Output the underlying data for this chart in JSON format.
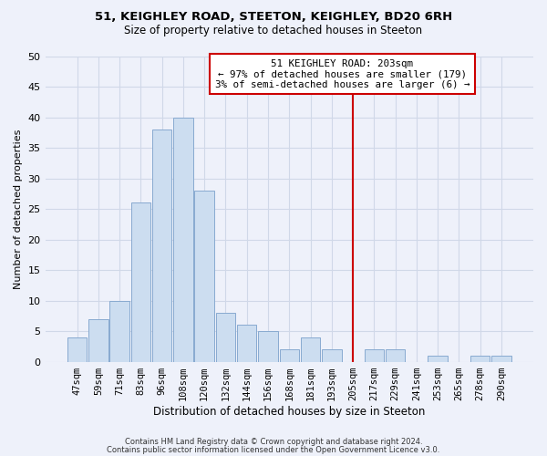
{
  "title": "51, KEIGHLEY ROAD, STEETON, KEIGHLEY, BD20 6RH",
  "subtitle": "Size of property relative to detached houses in Steeton",
  "xlabel": "Distribution of detached houses by size in Steeton",
  "ylabel": "Number of detached properties",
  "bar_labels": [
    "47sqm",
    "59sqm",
    "71sqm",
    "83sqm",
    "96sqm",
    "108sqm",
    "120sqm",
    "132sqm",
    "144sqm",
    "156sqm",
    "168sqm",
    "181sqm",
    "193sqm",
    "205sqm",
    "217sqm",
    "229sqm",
    "241sqm",
    "253sqm",
    "265sqm",
    "278sqm",
    "290sqm"
  ],
  "bar_heights": [
    4,
    7,
    10,
    26,
    38,
    40,
    28,
    8,
    6,
    5,
    2,
    4,
    2,
    0,
    2,
    2,
    0,
    1,
    0,
    1,
    1
  ],
  "bar_color": "#ccddf0",
  "bar_edge_color": "#88aad0",
  "vline_index": 13,
  "vline_color": "#cc0000",
  "annotation_title": "51 KEIGHLEY ROAD: 203sqm",
  "annotation_line1": "← 97% of detached houses are smaller (179)",
  "annotation_line2": "3% of semi-detached houses are larger (6) →",
  "annotation_box_color": "white",
  "annotation_box_edge": "#cc0000",
  "ylim": [
    0,
    50
  ],
  "yticks": [
    0,
    5,
    10,
    15,
    20,
    25,
    30,
    35,
    40,
    45,
    50
  ],
  "footer1": "Contains HM Land Registry data © Crown copyright and database right 2024.",
  "footer2": "Contains public sector information licensed under the Open Government Licence v3.0.",
  "background_color": "#eef1fa",
  "grid_color": "#d0d8e8",
  "title_fontsize": 9.5,
  "subtitle_fontsize": 8.5
}
